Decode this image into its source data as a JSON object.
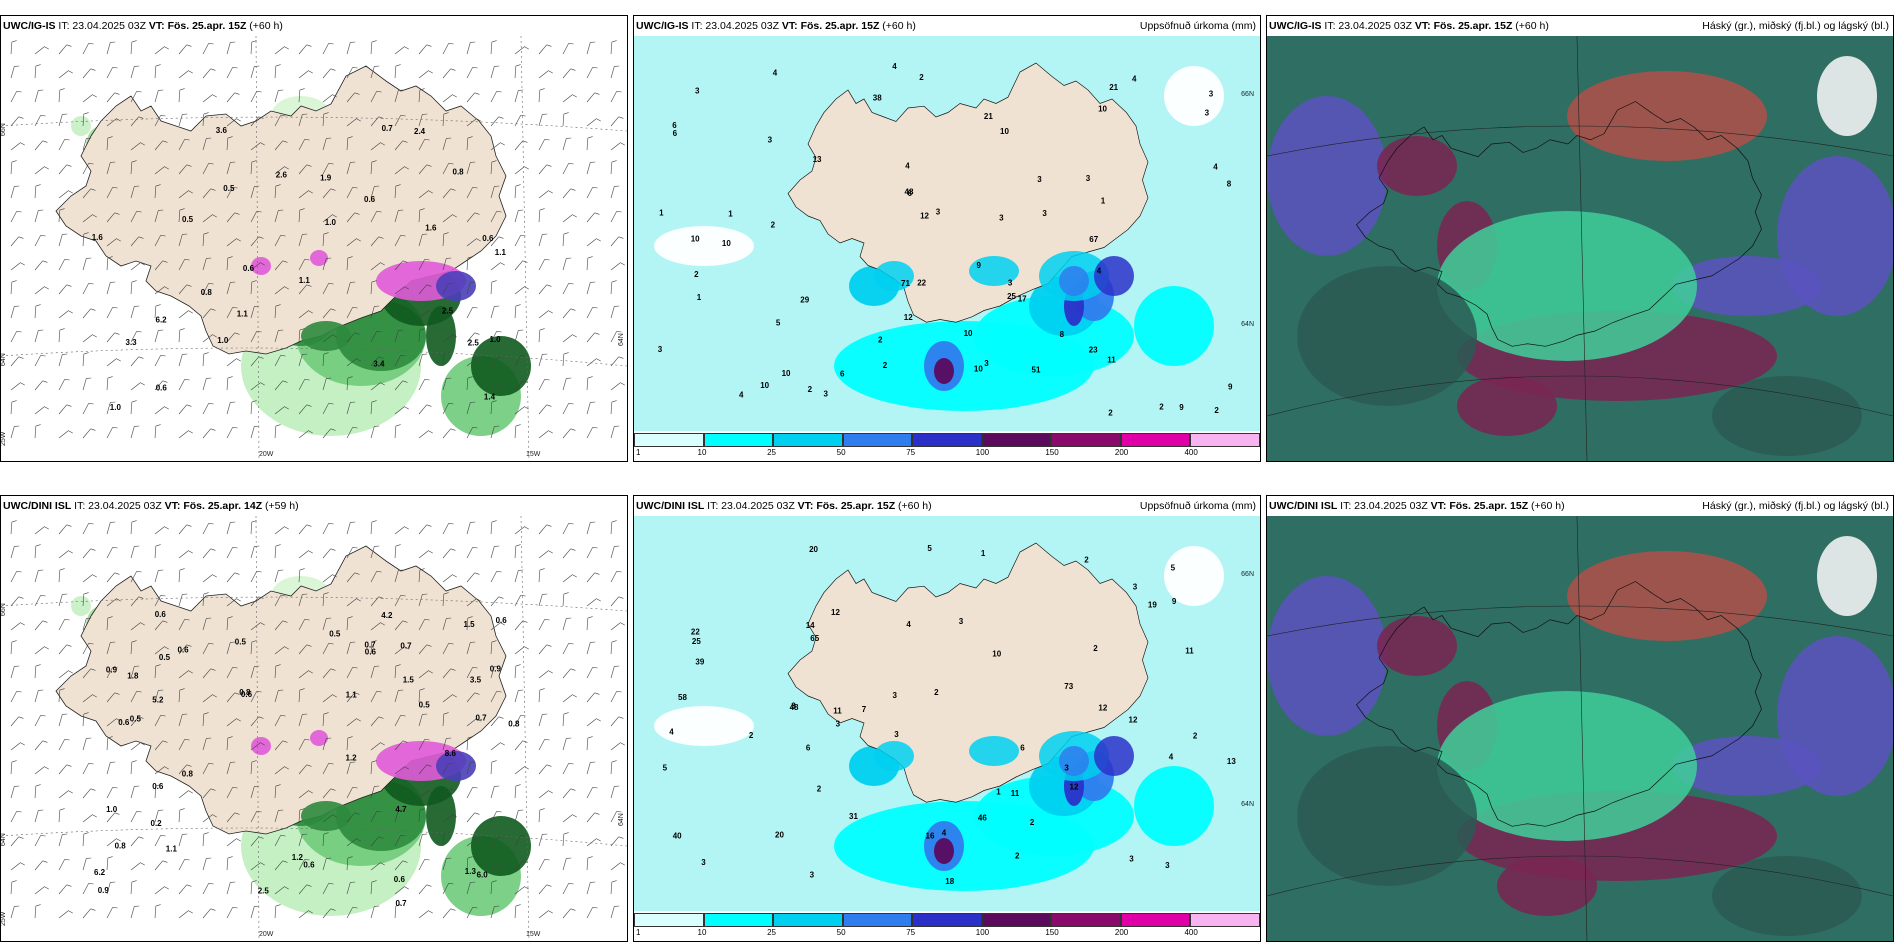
{
  "panels": [
    {
      "model": "UWC/IG-IS",
      "it": " IT: 23.04.2025 03Z ",
      "vt": "VT: Fös. 25.apr. 15Z",
      "lead": " (+60 h)",
      "right_title": "",
      "kind": "wind",
      "axis": {
        "lat_left_top": "66N",
        "lat_left_mid": "64N",
        "lat_left_bot": "25W",
        "lon_bottom_1": "20W",
        "lon_bottom_2": "15W",
        "lat_right": "64N"
      },
      "values": [
        "0.5",
        "0.6",
        "0.6",
        "1.1",
        "0.6",
        "1.0",
        "1.1",
        "0.7",
        "2.5",
        "0.8",
        "0.5",
        "2.5",
        "1.6",
        "1.0",
        "3.3",
        "1.1",
        "0.8",
        "1.6",
        "3.6",
        "2.6",
        "1.4",
        "1.9",
        "0.6",
        "6.2",
        "1.0",
        "2.4",
        "1.0",
        "3.4"
      ]
    },
    {
      "model": "UWC/IG-IS",
      "it": " IT: 23.04.2025 03Z ",
      "vt": "VT: Fös. 25.apr. 15Z",
      "lead": " (+60 h)",
      "right_title": "Uppsöfnuð úrkoma (mm)",
      "kind": "precip",
      "axis": {
        "lat_top": "66N",
        "lat_mid": "64N"
      },
      "values": [
        "1",
        "2",
        "3",
        "3",
        "6",
        "2",
        "10",
        "10",
        "4",
        "4",
        "3",
        "4",
        "4",
        "6",
        "3",
        "5",
        "3",
        "10",
        "9",
        "12",
        "8",
        "11",
        "3",
        "6",
        "10",
        "12",
        "3",
        "4",
        "3",
        "10",
        "2",
        "2",
        "3",
        "4",
        "2",
        "1",
        "1",
        "3",
        "6",
        "13",
        "10",
        "3",
        "9",
        "8",
        "22",
        "29",
        "10",
        "3",
        "2",
        "2",
        "3",
        "23",
        "17",
        "67",
        "51",
        "38",
        "25",
        "48",
        "21",
        "21",
        "71",
        "10",
        "4",
        "2",
        "9",
        "1",
        "2"
      ],
      "legend_ticks": [
        "1",
        "10",
        "25",
        "50",
        "75",
        "100",
        "150",
        "200",
        "400"
      ],
      "legend_colors": [
        "#d9ffff",
        "#00ffff",
        "#00d0f0",
        "#2f7dee",
        "#2b30c9",
        "#5b0a5e",
        "#8a0a6c",
        "#e000a8",
        "#f8b4f0"
      ]
    },
    {
      "model": "UWC/IG-IS",
      "it": " IT: 23.04.2025 03Z ",
      "vt": "VT: Fös. 25.apr. 15Z",
      "lead": " (+60 h)",
      "right_title": "Háský (gr.), miðský (fj.bl.) og lágský (bl.)",
      "kind": "cloud"
    },
    {
      "model": "UWC/DINI ISL",
      "it": " IT: 23.04.2025 03Z ",
      "vt": "VT: Fös. 25.apr. 14Z",
      "lead": " (+59 h)",
      "right_title": "",
      "kind": "wind",
      "axis": {
        "lat_left_top": "66N",
        "lat_left_mid": "64N",
        "lat_left_bot": "25W",
        "lon_bottom_1": "20W",
        "lon_bottom_2": "15W",
        "lat_right": "64N"
      },
      "values": [
        "0.9",
        "0.7",
        "0.7",
        "0.6",
        "0.8",
        "0.6",
        "0.6",
        "0.5",
        "0.5",
        "0.9",
        "0.6",
        "0.6",
        "1.2",
        "0.6",
        "1.1",
        "0.5",
        "0.6",
        "1.0",
        "0.8",
        "0.7",
        "0.5",
        "0.7",
        "0.5",
        "0.6",
        "3.5",
        "5.2",
        "6.0",
        "8.6",
        "6.2",
        "2.5",
        "1.5",
        "1.8",
        "1.3",
        "0.8",
        "4.7",
        "4.2",
        "1.2",
        "0.8",
        "0.2",
        "0.6",
        "0.9",
        "1.1",
        "1.5"
      ]
    },
    {
      "model": "UWC/DINI ISL",
      "it": " IT: 23.04.2025 03Z ",
      "vt": "VT: Fös. 25.apr. 15Z",
      "lead": " (+60 h)",
      "right_title": "Uppsöfnuð úrkoma (mm)",
      "kind": "precip",
      "axis": {
        "lat_top": "66N",
        "lat_mid": "64N"
      },
      "values": [
        "1",
        "2",
        "2",
        "1",
        "7",
        "6",
        "4",
        "5",
        "12",
        "11",
        "3",
        "3",
        "2",
        "14",
        "3",
        "3",
        "12",
        "11",
        "10",
        "6",
        "2",
        "4",
        "3",
        "31",
        "39",
        "46",
        "40",
        "16",
        "4",
        "2",
        "3",
        "12",
        "22",
        "48",
        "20",
        "25",
        "65",
        "73",
        "18",
        "19",
        "5",
        "3",
        "3",
        "9",
        "5",
        "13",
        "12",
        "2",
        "20",
        "58",
        "3",
        "11",
        "4",
        "3",
        "2",
        "3",
        "2"
      ],
      "legend_ticks": [
        "1",
        "10",
        "25",
        "50",
        "75",
        "100",
        "150",
        "200",
        "400"
      ],
      "legend_colors": [
        "#d9ffff",
        "#00ffff",
        "#00d0f0",
        "#2f7dee",
        "#2b30c9",
        "#5b0a5e",
        "#8a0a6c",
        "#e000a8",
        "#f8b4f0"
      ]
    },
    {
      "model": "UWC/DINI ISL",
      "it": " IT: 23.04.2025 03Z ",
      "vt": "VT: Fös. 25.apr. 15Z",
      "lead": " (+60 h)",
      "right_title": "Háský (gr.), miðský (fj.bl.) og lágský (bl.)",
      "kind": "cloud"
    }
  ],
  "colors": {
    "land": "#efe2d3",
    "precip_bg": "#b3f5f5",
    "cloud_high": "#2f6e62",
    "cloud_mid": "#7a2452",
    "cloud_low": "#5b52c0",
    "cloud_green": "#3fcf9a",
    "rain_green": "#bfeebc",
    "rain_dark": "#0f5a1e",
    "rain_pink": "#e05ad8"
  }
}
